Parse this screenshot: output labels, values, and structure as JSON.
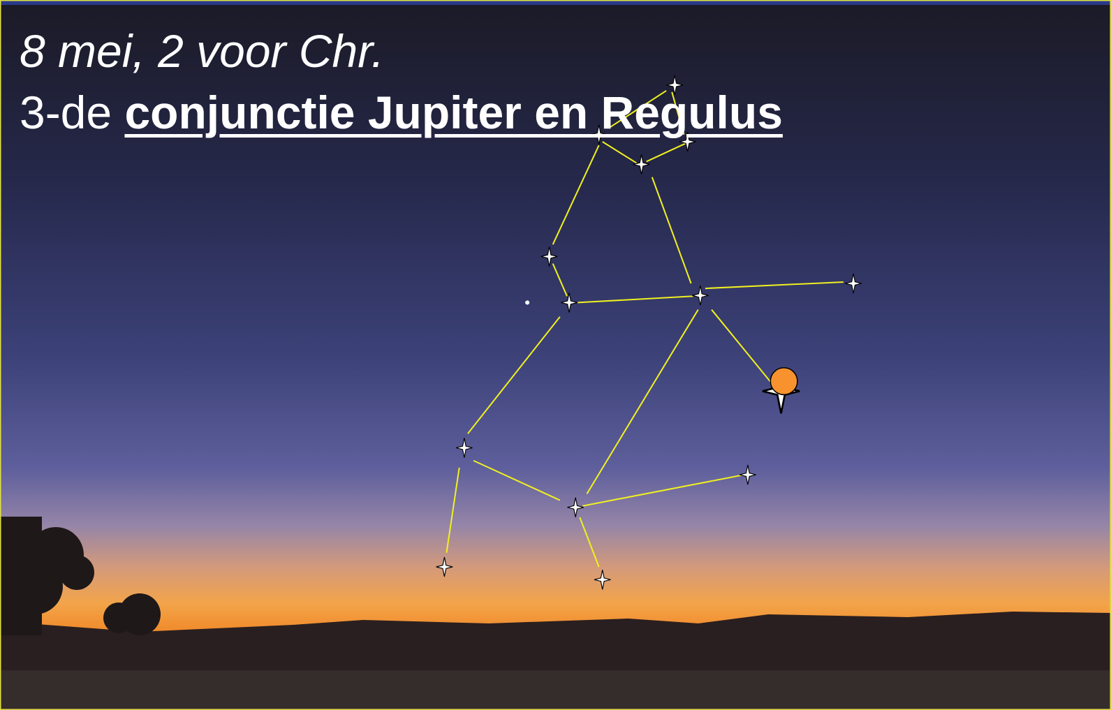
{
  "slide": {
    "date_line": "8 mei, 2 voor Chr.",
    "title_prefix": "3-de",
    "title_emphasis": "conjunctie Jupiter en Regulus"
  }
}
